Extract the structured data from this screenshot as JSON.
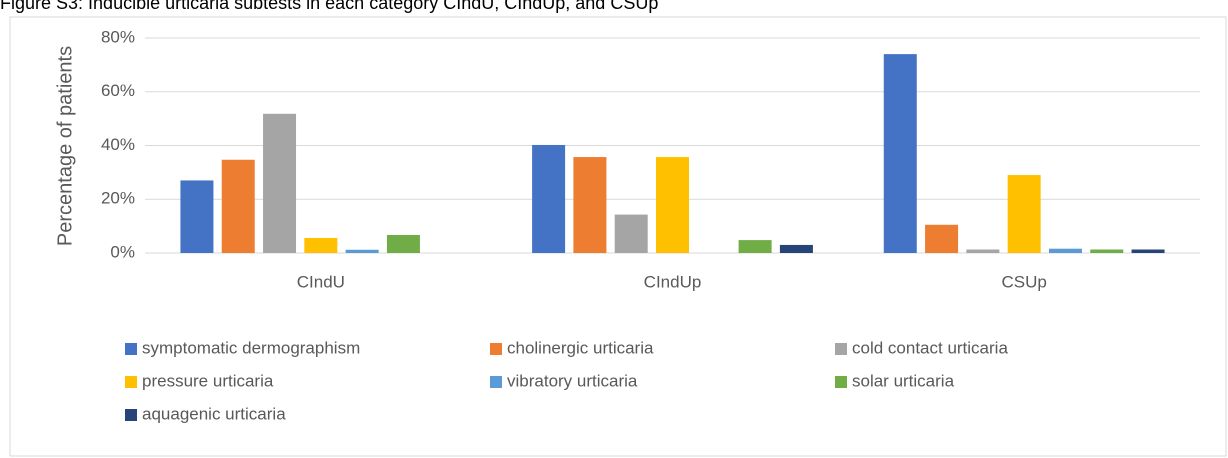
{
  "chart_data": {
    "type": "bar",
    "title": "Figure S3: Inducible urticaria subtests in each category CIndU, CIndUp, and CSUp",
    "ylabel": "Percentage of patients",
    "categories": [
      "CIndU",
      "CIndUp",
      "CSUp"
    ],
    "series": [
      {
        "name": "symptomatic dermographism",
        "color": "#4472c4",
        "values": [
          27,
          40.2,
          74
        ]
      },
      {
        "name": "cholinergic urticaria",
        "color": "#ed7d31",
        "values": [
          34.7,
          35.7,
          10.5
        ]
      },
      {
        "name": "cold contact urticaria",
        "color": "#a5a5a5",
        "values": [
          51.8,
          14.3,
          1.3
        ]
      },
      {
        "name": "pressure urticaria",
        "color": "#ffc000",
        "values": [
          5.6,
          35.7,
          29
        ]
      },
      {
        "name": "vibratory urticaria",
        "color": "#5b9bd5",
        "values": [
          1.2,
          0,
          1.6
        ]
      },
      {
        "name": "solar urticaria",
        "color": "#70ad47",
        "values": [
          6.7,
          4.8,
          1.3
        ]
      },
      {
        "name": "aquagenic urticaria",
        "color": "#264478",
        "values": [
          0,
          3,
          1.3
        ]
      }
    ],
    "ylim": [
      0,
      80
    ],
    "yticks": [
      {
        "value": 0,
        "label": "0%"
      },
      {
        "value": 20,
        "label": "20%"
      },
      {
        "value": 40,
        "label": "40%"
      },
      {
        "value": 60,
        "label": "60%"
      },
      {
        "value": 80,
        "label": "80%"
      }
    ],
    "grid": true,
    "legend": "bottom"
  }
}
